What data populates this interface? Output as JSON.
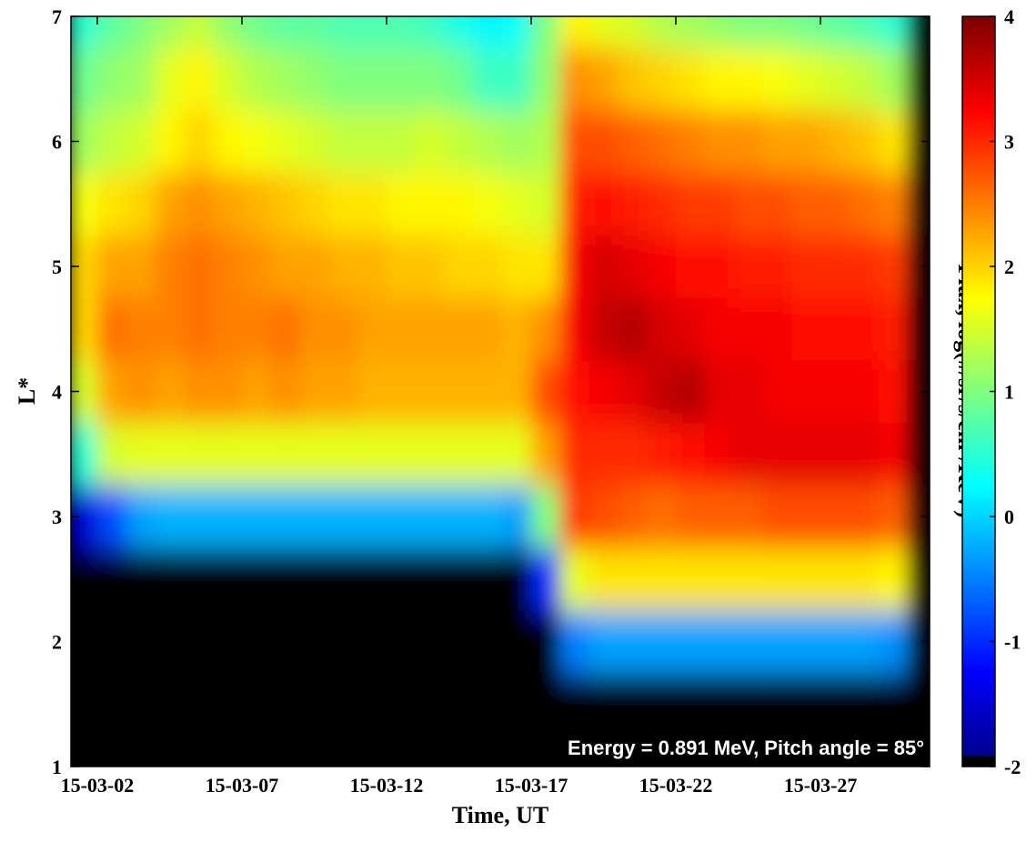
{
  "chart_data": {
    "type": "heatmap",
    "xlabel": "Time, UT",
    "ylabel": "L*",
    "annotation": "Energy = 0.891 MeV, Pitch angle = 85°",
    "colorbar_label": "Flux, log(#/sr/s/cm²/KeV)",
    "colormap": "jet",
    "missing_color": "#000000",
    "clim": [
      -2,
      4
    ],
    "cticks": [
      -2,
      -1,
      0,
      1,
      2,
      3,
      4
    ],
    "xlim": [
      1.09,
      30.77
    ],
    "xticks": [
      {
        "value": 2,
        "label": "15-03-02"
      },
      {
        "value": 7,
        "label": "15-03-07"
      },
      {
        "value": 12,
        "label": "15-03-12"
      },
      {
        "value": 17,
        "label": "15-03-17"
      },
      {
        "value": 22,
        "label": "15-03-22"
      },
      {
        "value": 27,
        "label": "15-03-27"
      }
    ],
    "ylim": [
      1,
      7
    ],
    "yticks": [
      1,
      2,
      3,
      4,
      5,
      6,
      7
    ],
    "x": [
      1.5,
      2.5,
      3.5,
      4.5,
      5.5,
      6.5,
      7.5,
      8.5,
      9.5,
      10.5,
      11.5,
      12.5,
      13.5,
      14.5,
      15.5,
      16.5,
      17.5,
      18.5,
      19.5,
      20.5,
      21.5,
      22.5,
      23.5,
      24.5,
      25.5,
      26.5,
      27.5,
      28.5,
      29.5,
      30.5
    ],
    "y": [
      1,
      1.5,
      2,
      2.5,
      3,
      3.5,
      4,
      4.5,
      5,
      5.5,
      6,
      6.5,
      7
    ],
    "z": [
      [
        null,
        null,
        null,
        null,
        null,
        null,
        null,
        null,
        null,
        null,
        null,
        null,
        null,
        null,
        null,
        null,
        null,
        null,
        null,
        null,
        null,
        null,
        null,
        null,
        null,
        null,
        null,
        null,
        null,
        null
      ],
      [
        null,
        null,
        null,
        null,
        null,
        null,
        null,
        null,
        null,
        null,
        null,
        null,
        null,
        null,
        null,
        null,
        null,
        null,
        null,
        null,
        null,
        null,
        null,
        null,
        null,
        null,
        null,
        null,
        null,
        null
      ],
      [
        null,
        null,
        null,
        null,
        null,
        null,
        null,
        null,
        null,
        null,
        null,
        null,
        null,
        null,
        null,
        null,
        null,
        -0.5,
        -0.3,
        -0.3,
        -0.3,
        -0.3,
        -0.3,
        -0.3,
        -0.3,
        -0.3,
        -0.3,
        -0.3,
        -0.4,
        null
      ],
      [
        null,
        null,
        null,
        null,
        null,
        null,
        null,
        null,
        null,
        null,
        null,
        null,
        null,
        null,
        null,
        null,
        -1.0,
        1.6,
        1.9,
        1.9,
        1.9,
        1.9,
        1.9,
        1.9,
        1.9,
        1.9,
        1.9,
        1.9,
        1.8,
        null
      ],
      [
        -1.5,
        -0.8,
        -0.3,
        -0.2,
        -0.2,
        -0.2,
        -0.2,
        -0.2,
        -0.2,
        -0.2,
        -0.2,
        -0.2,
        -0.2,
        -0.2,
        -0.2,
        -0.3,
        1.0,
        2.9,
        2.8,
        2.7,
        2.6,
        2.7,
        2.7,
        2.7,
        2.8,
        2.8,
        2.8,
        2.8,
        2.7,
        null
      ],
      [
        0.5,
        1.5,
        1.6,
        1.6,
        1.6,
        1.6,
        1.6,
        1.6,
        1.6,
        1.6,
        1.6,
        1.6,
        1.6,
        1.6,
        1.6,
        1.6,
        2.3,
        3.0,
        3.0,
        3.0,
        3.1,
        3.2,
        3.3,
        3.4,
        3.4,
        3.4,
        3.4,
        3.4,
        3.3,
        null
      ],
      [
        1.5,
        2.3,
        2.4,
        2.3,
        2.4,
        2.4,
        2.3,
        2.4,
        2.3,
        2.3,
        2.2,
        2.2,
        2.2,
        2.2,
        2.2,
        2.2,
        2.8,
        3.2,
        3.3,
        3.4,
        3.6,
        3.7,
        3.4,
        3.4,
        3.3,
        3.3,
        3.3,
        3.3,
        3.2,
        null
      ],
      [
        2.0,
        2.6,
        2.5,
        2.5,
        2.6,
        2.5,
        2.5,
        2.6,
        2.4,
        2.4,
        2.3,
        2.3,
        2.3,
        2.3,
        2.3,
        2.2,
        2.4,
        3.3,
        3.6,
        3.7,
        3.5,
        3.4,
        3.3,
        3.3,
        3.3,
        3.2,
        3.2,
        3.2,
        3.1,
        null
      ],
      [
        2.0,
        2.3,
        2.3,
        2.5,
        2.6,
        2.5,
        2.4,
        2.3,
        2.3,
        2.2,
        2.2,
        2.1,
        2.1,
        2.0,
        2.0,
        1.9,
        1.9,
        3.3,
        3.5,
        3.4,
        3.3,
        3.2,
        3.2,
        3.1,
        3.1,
        3.0,
        3.0,
        3.0,
        2.9,
        null
      ],
      [
        1.7,
        1.9,
        2.0,
        2.3,
        2.4,
        2.3,
        2.2,
        2.1,
        2.0,
        1.9,
        1.9,
        1.8,
        1.8,
        1.8,
        1.7,
        1.6,
        1.5,
        3.1,
        3.2,
        3.1,
        3.0,
        2.9,
        2.9,
        2.8,
        2.8,
        2.7,
        2.7,
        2.6,
        2.5,
        null
      ],
      [
        1.2,
        1.4,
        1.5,
        1.8,
        2.0,
        1.8,
        1.7,
        1.6,
        1.5,
        1.4,
        1.4,
        1.4,
        1.5,
        1.4,
        1.3,
        1.2,
        1.3,
        2.8,
        2.8,
        2.7,
        2.6,
        2.5,
        2.4,
        2.4,
        2.3,
        2.3,
        2.2,
        2.1,
        1.9,
        null
      ],
      [
        0.9,
        1.1,
        1.2,
        1.6,
        1.8,
        1.5,
        1.3,
        1.2,
        1.1,
        1.0,
        1.0,
        1.0,
        1.0,
        0.9,
        0.6,
        0.6,
        1.1,
        2.4,
        2.3,
        2.1,
        2.0,
        1.9,
        1.8,
        1.8,
        1.7,
        1.6,
        1.5,
        1.4,
        1.2,
        null
      ],
      [
        0.5,
        0.8,
        1.0,
        1.2,
        1.4,
        1.1,
        0.9,
        0.8,
        0.8,
        0.7,
        0.7,
        0.7,
        0.6,
        0.4,
        0.2,
        0.3,
        1.0,
        1.8,
        1.6,
        1.5,
        1.3,
        1.2,
        1.1,
        1.0,
        1.0,
        0.9,
        0.8,
        0.7,
        0.5,
        null
      ]
    ]
  }
}
